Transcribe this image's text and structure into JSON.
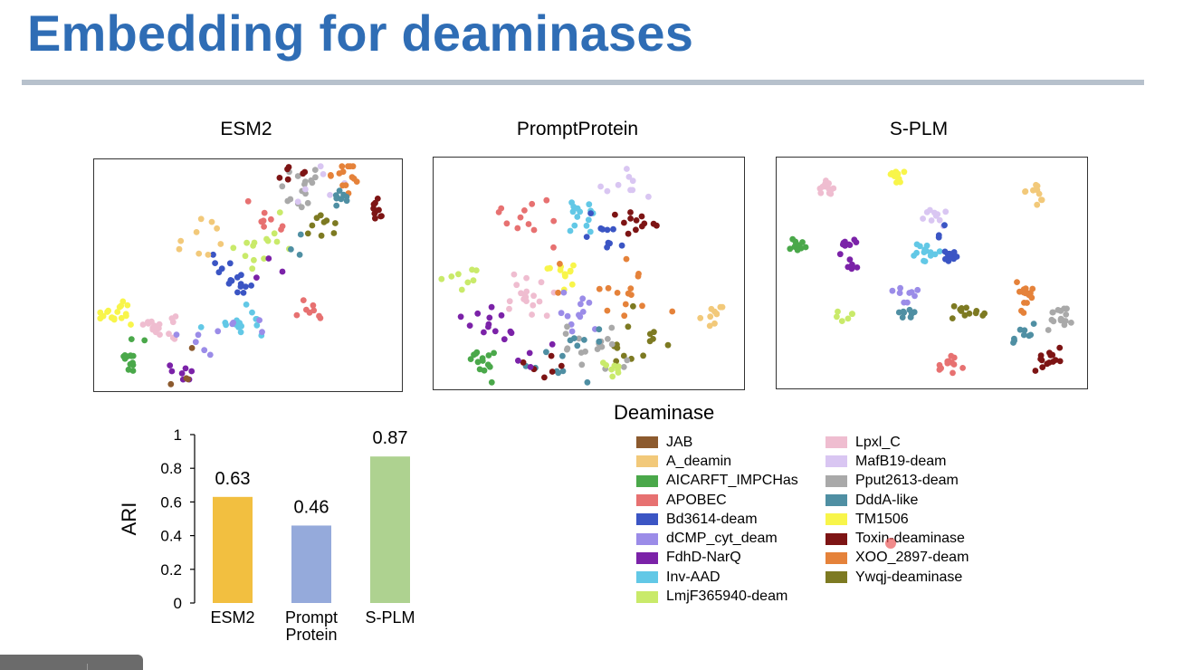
{
  "slide": {
    "title": "Embedding for deaminases"
  },
  "panels": [
    {
      "title": "ESM2"
    },
    {
      "title": "PromptProtein"
    },
    {
      "title": "S-PLM"
    }
  ],
  "legend": {
    "title": "Deaminase",
    "items": [
      {
        "label": "JAB",
        "color": "#8c5a2e"
      },
      {
        "label": "A_deamin",
        "color": "#f2c97a"
      },
      {
        "label": "AICARFT_IMPCHas",
        "color": "#4aa84a"
      },
      {
        "label": "APOBEC",
        "color": "#e77171"
      },
      {
        "label": "Bd3614-deam",
        "color": "#3b55c4"
      },
      {
        "label": "dCMP_cyt_deam",
        "color": "#9b8ce8"
      },
      {
        "label": "FdhD-NarQ",
        "color": "#7b22a8"
      },
      {
        "label": "Inv-AAD",
        "color": "#62c8e6"
      },
      {
        "label": "LmjF365940-deam",
        "color": "#c9ea6a"
      },
      {
        "label": "Lpxl_C",
        "color": "#efbdd0"
      },
      {
        "label": "MafB19-deam",
        "color": "#d9c6f2"
      },
      {
        "label": "Pput2613-deam",
        "color": "#a9a9a9"
      },
      {
        "label": "DddA-like",
        "color": "#4f8fa3"
      },
      {
        "label": "TM1506",
        "color": "#f8f54a"
      },
      {
        "label": "Toxin-deaminase",
        "color": "#7d1414"
      },
      {
        "label": "XOO_2897-deam",
        "color": "#e5823a"
      },
      {
        "label": "Ywqj-deaminase",
        "color": "#7d7a22"
      }
    ]
  },
  "chart_data": [
    {
      "type": "scatter",
      "title": "ESM2",
      "clusters": [
        {
          "name": "TM1506",
          "center": [
            0.07,
            0.67
          ],
          "n": 18,
          "spread": 0.025
        },
        {
          "name": "Lpxl_C",
          "center": [
            0.21,
            0.73
          ],
          "n": 18,
          "spread": 0.03
        },
        {
          "name": "AICARFT_IMPCHas",
          "center": [
            0.12,
            0.87
          ],
          "n": 14,
          "spread": 0.03
        },
        {
          "name": "FdhD-NarQ",
          "center": [
            0.29,
            0.91
          ],
          "n": 7,
          "spread": 0.025
        },
        {
          "name": "JAB",
          "center": [
            0.31,
            0.93
          ],
          "n": 4,
          "spread": 0.05
        },
        {
          "name": "Inv-AAD",
          "center": [
            0.47,
            0.71
          ],
          "n": 16,
          "spread": 0.035
        },
        {
          "name": "dCMP_cyt_deam",
          "center": [
            0.39,
            0.8
          ],
          "n": 10,
          "spread": 0.06
        },
        {
          "name": "Bd3614-deam",
          "center": [
            0.47,
            0.54
          ],
          "n": 12,
          "spread": 0.02
        },
        {
          "name": "Bd3614-deam",
          "center": [
            0.4,
            0.45
          ],
          "n": 5,
          "spread": 0.03
        },
        {
          "name": "A_deamin",
          "center": [
            0.34,
            0.35
          ],
          "n": 9,
          "spread": 0.06
        },
        {
          "name": "LmjF365940-deam",
          "center": [
            0.5,
            0.4
          ],
          "n": 8,
          "spread": 0.03
        },
        {
          "name": "LmjF365940-deam",
          "center": [
            0.59,
            0.33
          ],
          "n": 6,
          "spread": 0.03
        },
        {
          "name": "APOBEC",
          "center": [
            0.56,
            0.25
          ],
          "n": 8,
          "spread": 0.05
        },
        {
          "name": "APOBEC",
          "center": [
            0.71,
            0.66
          ],
          "n": 8,
          "spread": 0.025
        },
        {
          "name": "FdhD-NarQ",
          "center": [
            0.54,
            0.47
          ],
          "n": 3,
          "spread": 0.04
        },
        {
          "name": "Pput2613-deam",
          "center": [
            0.67,
            0.12
          ],
          "n": 16,
          "spread": 0.035
        },
        {
          "name": "Toxin-deaminase",
          "center": [
            0.63,
            0.06
          ],
          "n": 6,
          "spread": 0.03
        },
        {
          "name": "MafB19-deam",
          "center": [
            0.73,
            0.12
          ],
          "n": 6,
          "spread": 0.04
        },
        {
          "name": "XOO_2897-deam",
          "center": [
            0.83,
            0.07
          ],
          "n": 14,
          "spread": 0.03
        },
        {
          "name": "DddA-like",
          "center": [
            0.81,
            0.16
          ],
          "n": 9,
          "spread": 0.02
        },
        {
          "name": "Ywqj-deaminase",
          "center": [
            0.75,
            0.27
          ],
          "n": 9,
          "spread": 0.03
        },
        {
          "name": "Toxin-deaminase",
          "center": [
            0.92,
            0.22
          ],
          "n": 10,
          "spread": 0.02
        },
        {
          "name": "DddA-like",
          "center": [
            0.66,
            0.37
          ],
          "n": 3,
          "spread": 0.03
        }
      ]
    },
    {
      "type": "scatter",
      "title": "PromptProtein",
      "clusters": [
        {
          "name": "MafB19-deam",
          "center": [
            0.59,
            0.12
          ],
          "n": 9,
          "spread": 0.04
        },
        {
          "name": "Inv-AAD",
          "center": [
            0.48,
            0.25
          ],
          "n": 14,
          "spread": 0.04
        },
        {
          "name": "APOBEC",
          "center": [
            0.31,
            0.27
          ],
          "n": 12,
          "spread": 0.05
        },
        {
          "name": "Bd3614-deam",
          "center": [
            0.56,
            0.34
          ],
          "n": 10,
          "spread": 0.03
        },
        {
          "name": "Toxin-deaminase",
          "center": [
            0.66,
            0.28
          ],
          "n": 12,
          "spread": 0.03
        },
        {
          "name": "LmjF365940-deam",
          "center": [
            0.09,
            0.52
          ],
          "n": 8,
          "spread": 0.03
        },
        {
          "name": "TM1506",
          "center": [
            0.42,
            0.5
          ],
          "n": 12,
          "spread": 0.03
        },
        {
          "name": "Lpxl_C",
          "center": [
            0.3,
            0.6
          ],
          "n": 18,
          "spread": 0.05
        },
        {
          "name": "XOO_2897-deam",
          "center": [
            0.6,
            0.61
          ],
          "n": 16,
          "spread": 0.06
        },
        {
          "name": "dCMP_cyt_deam",
          "center": [
            0.46,
            0.67
          ],
          "n": 12,
          "spread": 0.05
        },
        {
          "name": "Ywqj-deaminase",
          "center": [
            0.66,
            0.78
          ],
          "n": 14,
          "spread": 0.06
        },
        {
          "name": "Pput2613-deam",
          "center": [
            0.52,
            0.81
          ],
          "n": 18,
          "spread": 0.06
        },
        {
          "name": "DddA-like",
          "center": [
            0.43,
            0.85
          ],
          "n": 14,
          "spread": 0.06
        },
        {
          "name": "FdhD-NarQ",
          "center": [
            0.16,
            0.73
          ],
          "n": 12,
          "spread": 0.04
        },
        {
          "name": "AICARFT_IMPCHas",
          "center": [
            0.15,
            0.89
          ],
          "n": 14,
          "spread": 0.03
        },
        {
          "name": "A_deamin",
          "center": [
            0.9,
            0.68
          ],
          "n": 10,
          "spread": 0.02
        },
        {
          "name": "LmjF365940-deam",
          "center": [
            0.58,
            0.91
          ],
          "n": 8,
          "spread": 0.03
        },
        {
          "name": "Toxin-deaminase",
          "center": [
            0.4,
            0.93
          ],
          "n": 6,
          "spread": 0.05
        },
        {
          "name": "FdhD-NarQ",
          "center": [
            0.3,
            0.82
          ],
          "n": 5,
          "spread": 0.04
        }
      ]
    },
    {
      "type": "scatter",
      "title": "S-PLM",
      "clusters": [
        {
          "name": "TM1506",
          "center": [
            0.39,
            0.08
          ],
          "n": 14,
          "spread": 0.018
        },
        {
          "name": "Lpxl_C",
          "center": [
            0.17,
            0.14
          ],
          "n": 14,
          "spread": 0.02
        },
        {
          "name": "A_deamin",
          "center": [
            0.84,
            0.16
          ],
          "n": 10,
          "spread": 0.02
        },
        {
          "name": "MafB19-deam",
          "center": [
            0.5,
            0.24
          ],
          "n": 10,
          "spread": 0.02
        },
        {
          "name": "AICARFT_IMPCHas",
          "center": [
            0.07,
            0.39
          ],
          "n": 12,
          "spread": 0.015
        },
        {
          "name": "FdhD-NarQ",
          "center": [
            0.23,
            0.38
          ],
          "n": 10,
          "spread": 0.02
        },
        {
          "name": "FdhD-NarQ",
          "center": [
            0.24,
            0.47
          ],
          "n": 5,
          "spread": 0.015
        },
        {
          "name": "Inv-AAD",
          "center": [
            0.47,
            0.4
          ],
          "n": 14,
          "spread": 0.025
        },
        {
          "name": "Bd3614-deam",
          "center": [
            0.56,
            0.42
          ],
          "n": 14,
          "spread": 0.015
        },
        {
          "name": "dCMP_cyt_deam",
          "center": [
            0.41,
            0.59
          ],
          "n": 9,
          "spread": 0.02
        },
        {
          "name": "DddA-like",
          "center": [
            0.43,
            0.68
          ],
          "n": 9,
          "spread": 0.015
        },
        {
          "name": "LmjF365940-deam",
          "center": [
            0.22,
            0.68
          ],
          "n": 6,
          "spread": 0.015
        },
        {
          "name": "Ywqj-deaminase",
          "center": [
            0.62,
            0.66
          ],
          "n": 12,
          "spread": 0.025
        },
        {
          "name": "XOO_2897-deam",
          "center": [
            0.8,
            0.6
          ],
          "n": 16,
          "spread": 0.025
        },
        {
          "name": "Pput2613-deam",
          "center": [
            0.91,
            0.7
          ],
          "n": 16,
          "spread": 0.025
        },
        {
          "name": "DddA-like",
          "center": [
            0.79,
            0.76
          ],
          "n": 9,
          "spread": 0.02
        },
        {
          "name": "APOBEC",
          "center": [
            0.56,
            0.89
          ],
          "n": 12,
          "spread": 0.02
        },
        {
          "name": "Toxin-deaminase",
          "center": [
            0.87,
            0.87
          ],
          "n": 14,
          "spread": 0.025
        },
        {
          "name": "Bd3614-deam",
          "center": [
            0.53,
            0.32
          ],
          "n": 3,
          "spread": 0.02
        }
      ]
    },
    {
      "type": "bar",
      "categories": [
        "ESM2",
        "Prompt Protein",
        "S-PLM"
      ],
      "category_lines": [
        [
          "ESM2"
        ],
        [
          "Prompt",
          "Protein"
        ],
        [
          "S-PLM"
        ]
      ],
      "values": [
        0.63,
        0.46,
        0.87
      ],
      "value_labels": [
        "0.63",
        "0.46",
        "0.87"
      ],
      "bar_colors": [
        "#f2bf40",
        "#95aadb",
        "#aed290"
      ],
      "ylabel": "ARI",
      "ylim": [
        0,
        1
      ],
      "yticks": [
        0,
        0.2,
        0.4,
        0.6,
        0.8,
        1
      ],
      "ytick_labels": [
        "0",
        "0.2",
        "0.4",
        "0.6",
        "0.8",
        "1"
      ]
    }
  ]
}
